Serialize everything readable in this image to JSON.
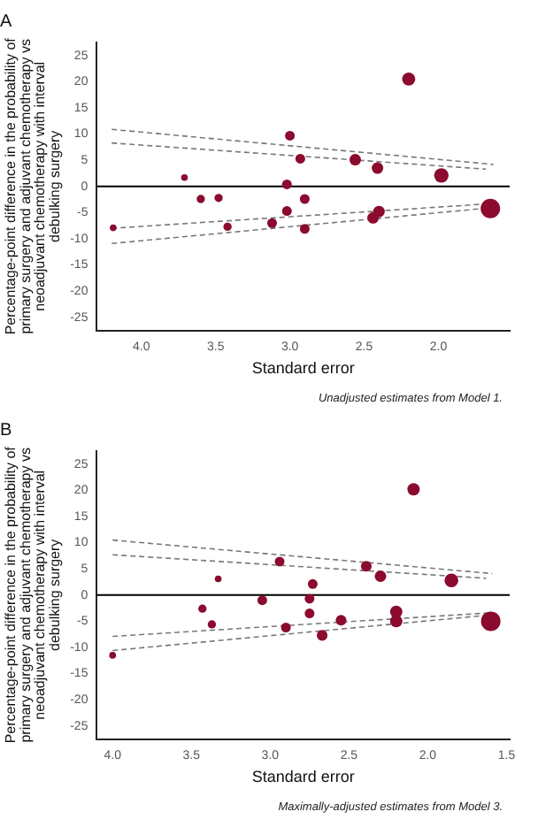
{
  "chart_data": [
    {
      "type": "bubble",
      "title": "A",
      "xlabel": "Standard error",
      "ylabel": "Percentage-point difference in the probability of primary surgery and adjuvant chemotherapy vs neoadjuvant chemotherapy with interval debulking surgery",
      "annotations": [
        "Unadjusted estimates from Model 1."
      ],
      "xlim": [
        4.3,
        1.52
      ],
      "xticks": [
        {
          "value": 4,
          "label": "4.0"
        },
        {
          "value": 3.5,
          "label": "3.5"
        },
        {
          "value": 3,
          "label": "3.0"
        },
        {
          "value": 2.5,
          "label": "2.5"
        },
        {
          "value": 2,
          "label": "2.0"
        }
      ],
      "ylim": [
        -27.5,
        27.5
      ],
      "yticks": [
        -25,
        -20,
        -15,
        -10,
        -5,
        0,
        5,
        10,
        15,
        20,
        25
      ],
      "grid": false,
      "legend": false,
      "ref_lines": [
        {
          "axis": "y",
          "value": 0,
          "color": "#000000"
        }
      ],
      "series": [
        {
          "type": "bubble",
          "color": "#8b0a2e",
          "x": [
            2.2,
            3.0,
            3.71,
            2.93,
            2.56,
            2.41,
            1.98,
            3.02,
            3.6,
            3.48,
            2.9,
            3.02,
            2.4,
            2.44,
            1.65,
            3.12,
            3.42,
            2.9,
            4.19
          ],
          "values": [
            20.5,
            9.7,
            1.7,
            5.3,
            5.1,
            3.5,
            2.1,
            0.4,
            -2.4,
            -2.2,
            -2.4,
            -4.7,
            -4.8,
            -6.0,
            -4.2,
            -7.0,
            -7.7,
            -8.1,
            -7.9
          ],
          "sizes": [
            0.45,
            0.25,
            0.12,
            0.25,
            0.35,
            0.35,
            0.55,
            0.25,
            0.18,
            0.18,
            0.25,
            0.25,
            0.35,
            0.35,
            1,
            0.25,
            0.18,
            0.25,
            0.12
          ]
        },
        {
          "type": "line",
          "color": "#777777",
          "line_style": "dashed",
          "marker": "none",
          "x": [
            4.2,
            1.63
          ],
          "values": [
            10.9,
            4.2
          ]
        },
        {
          "type": "line",
          "color": "#777777",
          "line_style": "dashed",
          "marker": "none",
          "x": [
            4.2,
            1.68
          ],
          "values": [
            8.3,
            3.3
          ]
        },
        {
          "type": "line",
          "color": "#777777",
          "line_style": "dashed",
          "marker": "none",
          "x": [
            4.2,
            1.65
          ],
          "values": [
            -8.0,
            -3.3
          ]
        },
        {
          "type": "line",
          "color": "#777777",
          "line_style": "dashed",
          "marker": "none",
          "x": [
            4.2,
            1.62
          ],
          "values": [
            -10.9,
            -4.0
          ]
        }
      ]
    },
    {
      "type": "bubble",
      "title": "B",
      "xlabel": "Standard error",
      "ylabel": "Percentage-point difference in the probability of primary surgery and adjuvant chemotherapy vs neoadjuvant chemotherapy with interval debulking surgery",
      "annotations": [
        "Maximally-adjusted estimates from Model 3."
      ],
      "xlim": [
        4.1,
        1.48
      ],
      "xticks": [
        {
          "value": 4,
          "label": "4.0"
        },
        {
          "value": 3.5,
          "label": "3.5"
        },
        {
          "value": 3,
          "label": "3.0"
        },
        {
          "value": 2.5,
          "label": "2.5"
        },
        {
          "value": 2,
          "label": "2.0"
        },
        {
          "value": 1.5,
          "label": "1.5"
        }
      ],
      "ylim": [
        -27.5,
        27.5
      ],
      "yticks": [
        -25,
        -20,
        -15,
        -10,
        -5,
        0,
        5,
        10,
        15,
        20,
        25
      ],
      "grid": false,
      "legend": false,
      "ref_lines": [
        {
          "axis": "y",
          "value": 0,
          "color": "#000000"
        }
      ],
      "series": [
        {
          "type": "bubble",
          "color": "#8b0a2e",
          "x": [
            2.09,
            2.94,
            3.33,
            2.73,
            2.39,
            2.3,
            1.85,
            3.05,
            2.75,
            3.43,
            3.37,
            2.75,
            2.9,
            2.67,
            2.55,
            2.2,
            2.2,
            1.6,
            4.0
          ],
          "values": [
            20.2,
            6.4,
            3.1,
            2.1,
            5.5,
            3.6,
            2.8,
            -1.0,
            -0.7,
            -2.6,
            -5.6,
            -3.5,
            -6.2,
            -7.7,
            -4.8,
            -3.2,
            -5.0,
            -5.0,
            -11.5
          ],
          "sizes": [
            0.4,
            0.25,
            0.12,
            0.25,
            0.3,
            0.35,
            0.5,
            0.25,
            0.25,
            0.18,
            0.18,
            0.25,
            0.25,
            0.3,
            0.3,
            0.4,
            0.4,
            1,
            0.12
          ]
        },
        {
          "type": "line",
          "color": "#777777",
          "line_style": "dashed",
          "marker": "none",
          "x": [
            4.0,
            1.59
          ],
          "values": [
            10.5,
            4.1
          ]
        },
        {
          "type": "line",
          "color": "#777777",
          "line_style": "dashed",
          "marker": "none",
          "x": [
            4.0,
            1.63
          ],
          "values": [
            7.7,
            3.2
          ]
        },
        {
          "type": "line",
          "color": "#777777",
          "line_style": "dashed",
          "marker": "none",
          "x": [
            4.0,
            1.61
          ],
          "values": [
            -7.9,
            -3.4
          ]
        },
        {
          "type": "line",
          "color": "#777777",
          "line_style": "dashed",
          "marker": "none",
          "x": [
            4.0,
            1.57
          ],
          "values": [
            -10.6,
            -3.7
          ]
        }
      ]
    }
  ]
}
